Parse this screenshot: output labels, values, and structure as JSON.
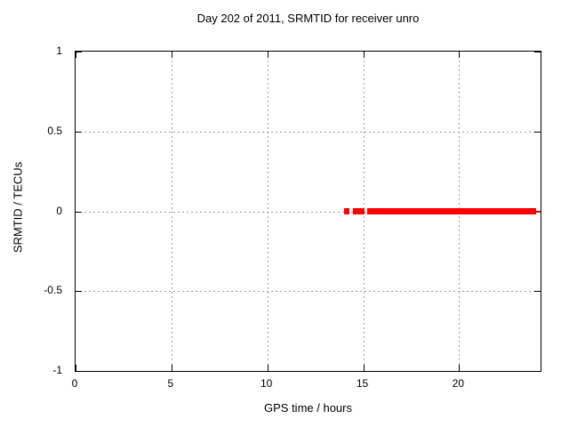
{
  "chart_data": {
    "type": "line",
    "title": "Day 202 of 2011, SRMTID for receiver unro",
    "xlabel": "GPS time / hours",
    "ylabel": "SRMTID / TECUs",
    "xlim": [
      0,
      24.25
    ],
    "ylim": [
      -1,
      1
    ],
    "xticks": [
      0,
      5,
      10,
      15,
      20
    ],
    "xtick_labels": [
      "0",
      "5",
      "10",
      "15",
      "20"
    ],
    "yticks": [
      -1,
      -0.5,
      0,
      0.5,
      1
    ],
    "ytick_labels": [
      "-1",
      "-0.5",
      "0",
      "0.5",
      "1"
    ],
    "grid": {
      "style": "dotted",
      "color": "#9a9a9a",
      "x_at": [
        5,
        10,
        15,
        20
      ],
      "y_at": [
        -0.5,
        0,
        0.5
      ]
    },
    "legend": "none",
    "background_color": "#ffffff",
    "border_color": "#000000",
    "series": [
      {
        "name": "SRMTID",
        "color": "#ff0000",
        "y_value": 0,
        "segments": [
          {
            "x0": 14.0,
            "x1": 14.3,
            "thickness_px": 7
          },
          {
            "x0": 14.45,
            "x1": 15.05,
            "thickness_px": 7
          },
          {
            "x0": 15.2,
            "x1": 24.0,
            "thickness_px": 7
          },
          {
            "x0": 24.0,
            "x1": 24.25,
            "thickness_px": 2
          }
        ]
      }
    ]
  }
}
